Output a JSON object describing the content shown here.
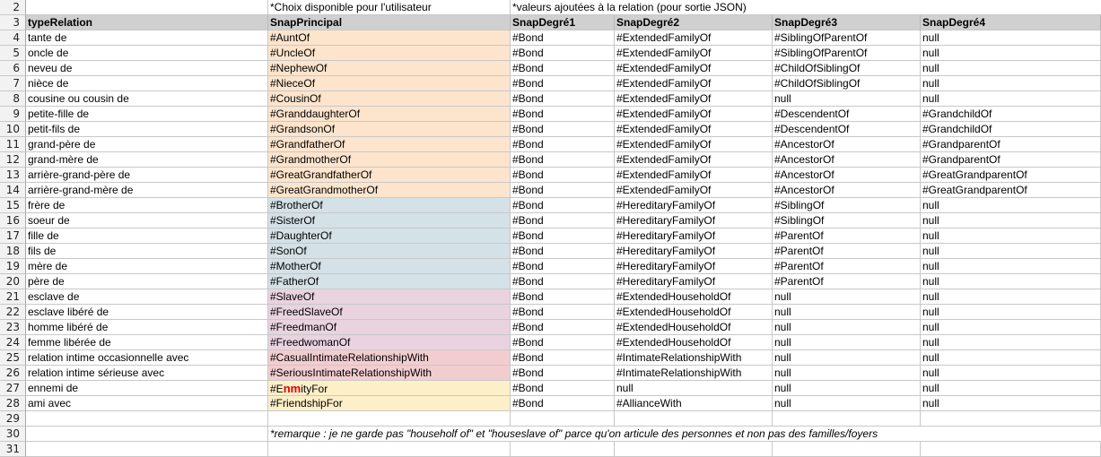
{
  "row_numbers": [
    "2",
    "3",
    "4",
    "5",
    "6",
    "7",
    "8",
    "9",
    "10",
    "11",
    "12",
    "13",
    "14",
    "15",
    "16",
    "17",
    "18",
    "19",
    "20",
    "21",
    "22",
    "23",
    "24",
    "25",
    "26",
    "27",
    "28",
    "29",
    "30",
    "31"
  ],
  "top_notes": {
    "user_choice": "*Choix disponible pour l'utilisateur",
    "json_values": "*valeurs ajoutées à la relation (pour sortie JSON)"
  },
  "headers": {
    "typeRelation": "typeRelation",
    "snapPrincipal": "SnapPrincipal",
    "snapDegre1": "SnapDegré1",
    "snapDegre2": "SnapDegré2",
    "snapDegre3": "SnapDegré3",
    "snapDegre4": "SnapDegré4"
  },
  "colors": {
    "extended_family": "#fde4cc",
    "hereditary_family": "#d4e1e6",
    "household": "#e9d3df",
    "intimate": "#f2cdd0",
    "enmity_friendship": "#fdefc8",
    "header_bg": "#d0d0d0",
    "highlight_text": "#e00000"
  },
  "rows": [
    {
      "type": "tante de",
      "principal": "#AuntOf",
      "d1": "#Bond",
      "d2": "#ExtendedFamilyOf",
      "d3": "#SiblingOfParentOf",
      "d4": "null",
      "group": "extended_family"
    },
    {
      "type": "oncle de",
      "principal": "#UncleOf",
      "d1": "#Bond",
      "d2": "#ExtendedFamilyOf",
      "d3": "#SiblingOfParentOf",
      "d4": "null",
      "group": "extended_family"
    },
    {
      "type": "neveu de",
      "principal": "#NephewOf",
      "d1": "#Bond",
      "d2": "#ExtendedFamilyOf",
      "d3": "#ChildOfSiblingOf",
      "d4": "null",
      "group": "extended_family"
    },
    {
      "type": "nièce de",
      "principal": "#NieceOf",
      "d1": "#Bond",
      "d2": "#ExtendedFamilyOf",
      "d3": "#ChildOfSiblingOf",
      "d4": "null",
      "group": "extended_family"
    },
    {
      "type": "cousine ou cousin de",
      "principal": "#CousinOf",
      "d1": "#Bond",
      "d2": "#ExtendedFamilyOf",
      "d3": "null",
      "d4": "null",
      "group": "extended_family"
    },
    {
      "type": "petite-fille de",
      "principal": "#GranddaughterOf",
      "d1": "#Bond",
      "d2": "#ExtendedFamilyOf",
      "d3": "#DescendentOf",
      "d4": "#GrandchildOf",
      "group": "extended_family"
    },
    {
      "type": "petit-fils de",
      "principal": "#GrandsonOf",
      "d1": "#Bond",
      "d2": "#ExtendedFamilyOf",
      "d3": "#DescendentOf",
      "d4": "#GrandchildOf",
      "group": "extended_family"
    },
    {
      "type": "grand-père de",
      "principal": "#GrandfatherOf",
      "d1": "#Bond",
      "d2": "#ExtendedFamilyOf",
      "d3": "#AncestorOf",
      "d4": "#GrandparentOf",
      "group": "extended_family"
    },
    {
      "type": "grand-mère de",
      "principal": "#GrandmotherOf",
      "d1": "#Bond",
      "d2": "#ExtendedFamilyOf",
      "d3": "#AncestorOf",
      "d4": "#GrandparentOf",
      "group": "extended_family"
    },
    {
      "type": "arrière-grand-père de",
      "principal": "#GreatGrandfatherOf",
      "d1": "#Bond",
      "d2": "#ExtendedFamilyOf",
      "d3": "#AncestorOf",
      "d4": "#GreatGrandparentOf",
      "group": "extended_family"
    },
    {
      "type": "arrière-grand-mère de",
      "principal": "#GreatGrandmotherOf",
      "d1": "#Bond",
      "d2": "#ExtendedFamilyOf",
      "d3": "#AncestorOf",
      "d4": "#GreatGrandparentOf",
      "group": "extended_family"
    },
    {
      "type": "frère de",
      "principal": "#BrotherOf",
      "d1": "#Bond",
      "d2": "#HereditaryFamilyOf",
      "d3": "#SiblingOf",
      "d4": "null",
      "group": "hereditary_family"
    },
    {
      "type": "soeur de",
      "principal": "#SisterOf",
      "d1": "#Bond",
      "d2": "#HereditaryFamilyOf",
      "d3": "#SiblingOf",
      "d4": "null",
      "group": "hereditary_family"
    },
    {
      "type": "fille de",
      "principal": "#DaughterOf",
      "d1": "#Bond",
      "d2": "#HereditaryFamilyOf",
      "d3": "#ParentOf",
      "d4": "null",
      "group": "hereditary_family"
    },
    {
      "type": "fils de",
      "principal": "#SonOf",
      "d1": "#Bond",
      "d2": "#HereditaryFamilyOf",
      "d3": "#ParentOf",
      "d4": "null",
      "group": "hereditary_family"
    },
    {
      "type": "mère de",
      "principal": "#MotherOf",
      "d1": "#Bond",
      "d2": "#HereditaryFamilyOf",
      "d3": "#ParentOf",
      "d4": "null",
      "group": "hereditary_family"
    },
    {
      "type": "père de",
      "principal": "#FatherOf",
      "d1": "#Bond",
      "d2": "#HereditaryFamilyOf",
      "d3": "#ParentOf",
      "d4": "null",
      "group": "hereditary_family"
    },
    {
      "type": "esclave de",
      "principal": "#SlaveOf",
      "d1": "#Bond",
      "d2": "#ExtendedHouseholdOf",
      "d3": "null",
      "d4": "null",
      "group": "household"
    },
    {
      "type": "esclave libéré de",
      "principal": "#FreedSlaveOf",
      "d1": "#Bond",
      "d2": "#ExtendedHouseholdOf",
      "d3": "null",
      "d4": "null",
      "group": "household"
    },
    {
      "type": "homme libéré de",
      "principal": "#FreedmanOf",
      "d1": "#Bond",
      "d2": "#ExtendedHouseholdOf",
      "d3": "null",
      "d4": "null",
      "group": "household"
    },
    {
      "type": "femme libérée de",
      "principal": "#FreedwomanOf",
      "d1": "#Bond",
      "d2": "#ExtendedHouseholdOf",
      "d3": "null",
      "d4": "null",
      "group": "household"
    },
    {
      "type": "relation intime occasionnelle avec",
      "principal": "#CasualIntimateRelationshipWith",
      "d1": "#Bond",
      "d2": "#IntimateRelationshipWith",
      "d3": "null",
      "d4": "null",
      "group": "intimate"
    },
    {
      "type": "relation intime sérieuse avec",
      "principal": "#SeriousIntimateRelationshipWith",
      "d1": "#Bond",
      "d2": "#IntimateRelationshipWith",
      "d3": "null",
      "d4": "null",
      "group": "intimate"
    },
    {
      "type": "ennemi de",
      "principal_parts": [
        "#E",
        "nm",
        "ityFor"
      ],
      "principal": "#EnmityFor",
      "d1": "#Bond",
      "d2": "null",
      "d3": "null",
      "d4": "null",
      "group": "enmity_friendship"
    },
    {
      "type": "ami avec",
      "principal": "#FriendshipFor",
      "d1": "#Bond",
      "d2": "#AllianceWith",
      "d3": "null",
      "d4": "null",
      "group": "enmity_friendship"
    }
  ],
  "remark": "*remarque : je ne garde pas \"householf of\" et \"houseslave of\" parce qu'on articule des personnes et non pas des familles/foyers"
}
